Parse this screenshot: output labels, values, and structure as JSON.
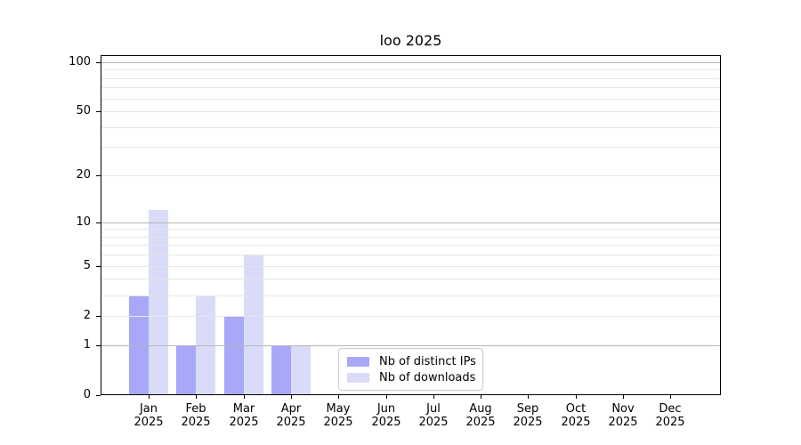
{
  "chart_data": {
    "type": "bar",
    "title": "loo 2025",
    "categories": [
      "Jan",
      "Feb",
      "Mar",
      "Apr",
      "May",
      "Jun",
      "Jul",
      "Aug",
      "Sep",
      "Oct",
      "Nov",
      "Dec"
    ],
    "category_year": "2025",
    "series": [
      {
        "name": "Nb of distinct IPs",
        "color": "#a8a8f8",
        "values": [
          3,
          1,
          2,
          1,
          0,
          0,
          0,
          0,
          0,
          0,
          0,
          0
        ]
      },
      {
        "name": "Nb of downloads",
        "color": "#dadaf9",
        "values": [
          12,
          3,
          6,
          1,
          0,
          0,
          0,
          0,
          0,
          0,
          0,
          0
        ]
      }
    ],
    "y_axis": {
      "scale": "log1p",
      "tick_values": [
        0,
        1,
        2,
        5,
        10,
        20,
        50,
        100
      ],
      "tick_labels": [
        "0",
        "1",
        "2",
        "5",
        "10",
        "20",
        "50",
        "100"
      ],
      "major_grid_values": [
        1,
        10,
        100
      ],
      "minor_grid_values": [
        2,
        3,
        4,
        5,
        6,
        7,
        8,
        9,
        20,
        30,
        40,
        60,
        70,
        80,
        90
      ],
      "minor_labeled_grid_values": [
        5,
        20,
        50
      ],
      "ylim": [
        0,
        110
      ]
    },
    "colors": {
      "major_grid": "#b6b6b6",
      "minor_grid": "#e6e6e6",
      "axis": "#000000",
      "background": "#ffffff"
    },
    "legend": {
      "position": "lower-center",
      "entries": [
        "Nb of distinct IPs",
        "Nb of downloads"
      ]
    },
    "grid": "on"
  }
}
